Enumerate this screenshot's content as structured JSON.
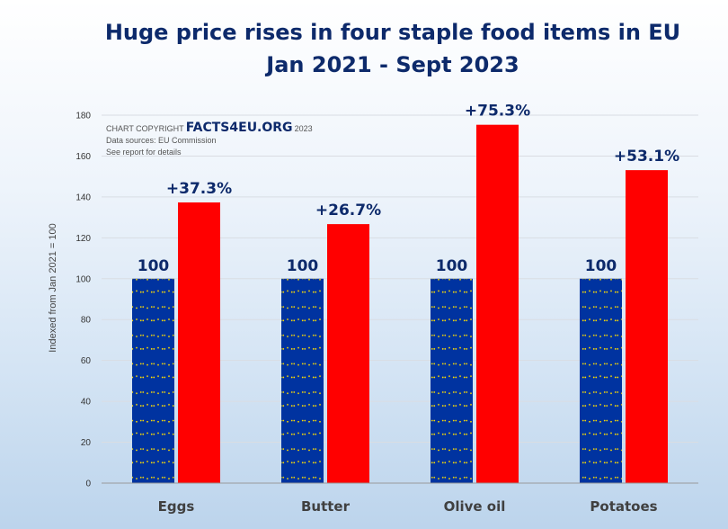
{
  "chart_data": {
    "type": "bar",
    "title": "Huge price rises in four staple food items in EU",
    "subtitle": "Jan 2021 - Sept 2023",
    "ylabel": "Indexed from Jan 2021 = 100",
    "xlabel": "",
    "ylim": [
      0,
      180
    ],
    "yticks": [
      0,
      20,
      40,
      60,
      80,
      100,
      120,
      140,
      160,
      180
    ],
    "categories": [
      "Eggs",
      "Butter",
      "Olive oil",
      "Potatoes"
    ],
    "series": [
      {
        "values": [
          100,
          100,
          100,
          100
        ],
        "labels": [
          "100",
          "100",
          "100",
          "100"
        ],
        "color": "#0033a0"
      },
      {
        "values": [
          137.3,
          126.7,
          175.3,
          153.1
        ],
        "labels": [
          "+37.3%",
          "+26.7%",
          "+75.3%",
          "+53.1%"
        ],
        "color": "#ff0000"
      }
    ],
    "grid": true,
    "legend": "none"
  },
  "copyright": {
    "prefix": "CHART COPYRIGHT",
    "brand": "FACTS4EU.ORG",
    "year": "2023",
    "source": "Data sources: EU Commission",
    "note": "See report for details"
  },
  "colors": {
    "title": "#0d2a6b",
    "eu_blue": "#0033a0",
    "eu_star": "#ffdd00",
    "red": "#ff0000"
  }
}
